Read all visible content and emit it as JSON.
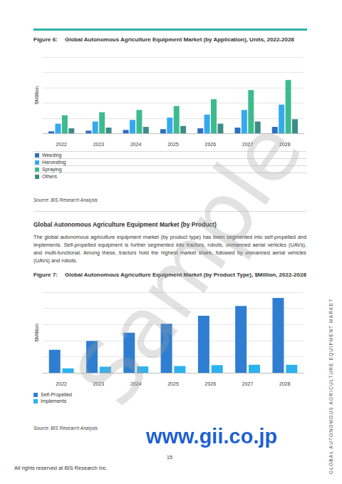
{
  "page": {
    "section_heading": "Global Autonomous Agriculture Equipment Market (by Product)",
    "paragraph": "The global autonomous agriculture equipment market (by product type) has been segmented into self-propelled and implements. Self-propelled equipment is further segmented into tractors, robots, unmanned aerial vehicles (UAVs), and multi-functional. Among these, tractors hold the highest market share, followed by unmanned aerial vehicles (UAVs) and robots.",
    "footer": "All rights reserved at BIS Research Inc.",
    "page_number": "15",
    "side_text": "GLOBAL AUTONOMOUS AGRICULTURE EQUIPMENT MARKET",
    "watermarks": [
      "Sample",
      "www.gii.co.jp"
    ]
  },
  "chart_data": [
    {
      "type": "bar",
      "figure_label": "Figure 6:",
      "title": "Global Autonomous Agriculture Equipment Market (by Application), Units, 2022-2028",
      "y_label": "$Million",
      "categories": [
        "2022",
        "2023",
        "2024",
        "2025",
        "2026",
        "2027",
        "2028"
      ],
      "series": [
        {
          "name": "Weeding",
          "color": "#2e6fc0",
          "values": [
            3,
            4,
            5,
            6,
            7,
            8,
            9
          ]
        },
        {
          "name": "Harvesting",
          "color": "#35a9ef",
          "values": [
            13,
            16,
            18,
            21,
            25,
            31,
            38
          ]
        },
        {
          "name": "Spraying",
          "color": "#3dbb8e",
          "values": [
            24,
            28,
            31,
            36,
            45,
            57,
            70
          ]
        },
        {
          "name": "Others",
          "color": "#3e8c88",
          "values": [
            7,
            8,
            9,
            10,
            13,
            16,
            19
          ]
        }
      ],
      "ylim": [
        0,
        100
      ],
      "yticks": [
        0,
        20,
        40,
        60,
        80,
        100
      ],
      "grid": true,
      "legend": "bottom",
      "tick_labels": "x",
      "source": "Source: BIS Research Analysis"
    },
    {
      "type": "bar",
      "figure_label": "Figure 7:",
      "title": "Global Autonomous Agriculture Equipment Market (by Product Type), $Million, 2022-2028",
      "y_label": "$Million",
      "categories": [
        "2022",
        "2023",
        "2024",
        "2025",
        "2026",
        "2027",
        "2028"
      ],
      "series": [
        {
          "name": "Self-Propelled",
          "color": "#2f7ed2",
          "values": [
            29,
            40,
            50,
            61,
            71,
            83,
            93
          ]
        },
        {
          "name": "Implements",
          "color": "#2cb2f0",
          "values": [
            6,
            8,
            8.5,
            9,
            10,
            10.5,
            10.5
          ]
        }
      ],
      "ylim": [
        0,
        100
      ],
      "yticks": [
        0,
        20,
        40,
        60,
        80,
        100
      ],
      "grid": true,
      "legend": "bottom",
      "tick_labels": "x",
      "source": "Source: BIS Research Analysis"
    }
  ]
}
